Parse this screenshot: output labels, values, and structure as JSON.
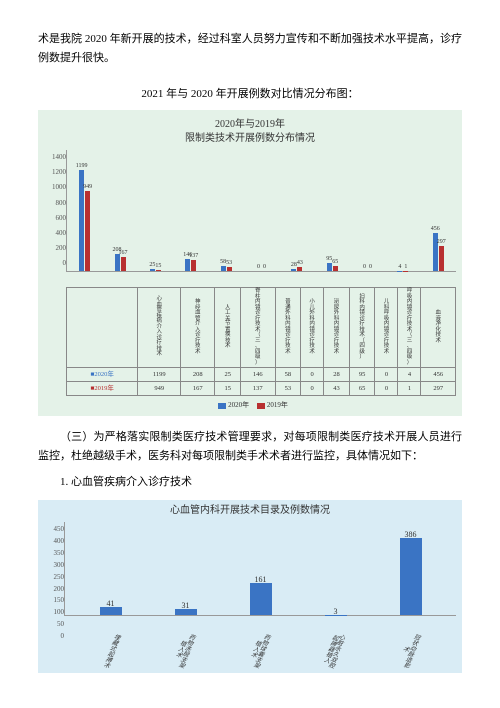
{
  "intro_para": "术是我院 2020 年新开展的技术，经过科室人员努力宣传和不断加强技术水平提高，诊疗例数提升很快。",
  "chart1_heading": "2021 年与 2020 年开展例数对比情况分布图：",
  "chart1": {
    "title_line1": "2020年与2019年",
    "title_line2": "限制类技术开展例数分布情况",
    "ylim": 1400,
    "yticks": [
      "1400",
      "1200",
      "1000",
      "800",
      "600",
      "400",
      "200",
      "0"
    ],
    "color2020": "#3a74c4",
    "color2019": "#b83030",
    "categories": [
      "心血管疾病介入诊疗技术",
      "神经血管介入诊疗技术",
      "人工关节置换技术",
      "脊柱内镜诊疗技术（三、四级）",
      "普通外科内镜诊疗技术",
      "小儿外科内镜诊疗技术",
      "泌尿外科内镜诊疗技术",
      "妇科内镜诊疗技术（四级）",
      "儿科呼吸内镜诊疗技术",
      "呼吸内镜诊疗技术（三、四级）",
      "血液净化技术"
    ],
    "series2020": [
      1199,
      208,
      25,
      146,
      58,
      0,
      28,
      95,
      0,
      4,
      456
    ],
    "series2019": [
      949,
      167,
      15,
      137,
      53,
      0,
      43,
      65,
      0,
      1,
      297
    ],
    "row2020_label": "■2020年",
    "row2019_label": "■2019年",
    "legend2020": "2020年",
    "legend2019": "2019年"
  },
  "section3_para": "（三）为严格落实限制类医疗技术管理要求，对每项限制类医疗技术开展人员进行监控，杜绝越级手术，医务科对每项限制类手术术者进行监控，具体情况如下：",
  "section3_item1": "1. 心血管疾病介入诊疗技术",
  "chart2": {
    "title": "心血管内科开展技术目录及例数情况",
    "ylim": 450,
    "yticks": [
      "450",
      "400",
      "350",
      "300",
      "250",
      "200",
      "150",
      "100",
      "50",
      "0"
    ],
    "bar_color": "#3a74c4",
    "categories": [
      "埋藏式起搏术",
      "药物洗脱支架植入术",
      "药物球囊支架植入术",
      "心脏永久双腔起搏器植入",
      "冠状动脉造影术"
    ],
    "values": [
      41,
      31,
      161,
      3,
      386
    ]
  }
}
